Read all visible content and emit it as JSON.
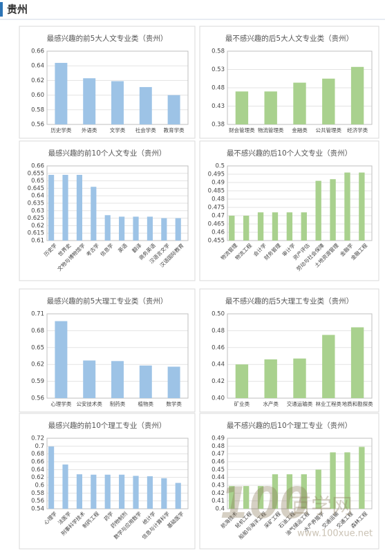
{
  "header": "贵州",
  "watermark": {
    "logo": "100",
    "name": "百学网",
    "url": "www.100xue.net"
  },
  "chart_data": [
    {
      "type": "bar",
      "title": "最感兴趣的前5大人文专业类（贵州）",
      "categories": [
        "历史学类",
        "外语类",
        "文学类",
        "社会学类",
        "教育学类"
      ],
      "values": [
        0.644,
        0.623,
        0.619,
        0.611,
        0.6
      ],
      "color": "#9dc3e6",
      "ylim": [
        0.56,
        0.66
      ],
      "yticks": [
        0.56,
        0.58,
        {
          "value": 0.6,
          "label": "0.60"
        },
        0.62,
        0.64,
        0.66
      ],
      "grid": true
    },
    {
      "type": "bar",
      "title": "最不感兴趣的后5大人文专业类（贵州）",
      "categories": [
        "财会管理类",
        "物流管理类",
        "金融类",
        "公共管理类",
        "经济学类"
      ],
      "values": [
        0.47,
        0.47,
        0.494,
        0.505,
        0.537
      ],
      "color": "#a9d18e",
      "ylim": [
        0.38,
        0.58
      ],
      "yticks": [
        0.38,
        0.43,
        0.48,
        0.53,
        0.58
      ],
      "grid": true
    },
    {
      "type": "bar",
      "title": "最感兴趣的前10个人文专业（贵州）",
      "categories": [
        "历史学",
        "世界史",
        "文物与博物馆学",
        "考古学",
        "信息学",
        "英语",
        "翻译",
        "商务英语",
        "汉语言文学",
        "汉语国际教育"
      ],
      "values": [
        0.654,
        0.654,
        0.654,
        0.646,
        0.627,
        0.626,
        0.626,
        0.626,
        0.625,
        0.625
      ],
      "color": "#9dc3e6",
      "ylim": [
        0.61,
        0.66
      ],
      "yticks": [
        0.61,
        0.615,
        0.62,
        0.625,
        0.63,
        0.635,
        0.64,
        0.645,
        0.65,
        0.655,
        0.66
      ],
      "grid": true
    },
    {
      "type": "bar",
      "title": "最不感兴趣的后10个人文专业（贵州）",
      "categories": [
        "物流管理",
        "物流工程",
        "会计学",
        "财务管理",
        "审计学",
        "资产评估",
        "劳动与社会保障",
        "土地资源管理",
        "金融学",
        "金融工程"
      ],
      "values": [
        0.47,
        0.47,
        0.472,
        0.472,
        0.472,
        0.472,
        0.491,
        0.492,
        0.496,
        0.496
      ],
      "color": "#a9d18e",
      "ylim": [
        0.455,
        0.5
      ],
      "yticks": [
        0.455,
        0.46,
        0.465,
        0.47,
        0.475,
        0.48,
        0.485,
        0.49,
        0.495,
        0.5
      ],
      "grid": true
    },
    {
      "type": "bar",
      "title": "最感兴趣的前5大理工专业类（贵州）",
      "categories": [
        "心理学类",
        "公安技术类",
        "制药类",
        "植物类",
        "数学类"
      ],
      "values": [
        0.697,
        0.627,
        0.626,
        0.618,
        0.616
      ],
      "color": "#9dc3e6",
      "ylim": [
        0.56,
        0.71
      ],
      "yticks": [
        0.56,
        0.59,
        0.62,
        0.65,
        0.68,
        0.71
      ],
      "grid": true
    },
    {
      "type": "bar",
      "title": "最不感兴趣的后5大理工专业类（贵州）",
      "categories": [
        "矿业类",
        "水产类",
        "交通运输类",
        "林业工程类",
        "地质和勘探类"
      ],
      "values": [
        0.44,
        0.446,
        0.447,
        0.475,
        0.484
      ],
      "color": "#a9d18e",
      "ylim": [
        0.4,
        0.5
      ],
      "yticks": [
        {
          "value": 0.4,
          "label": "0.40"
        },
        0.42,
        0.44,
        0.46,
        0.48,
        {
          "value": 0.5,
          "label": "0.50"
        }
      ],
      "grid": true
    },
    {
      "type": "bar",
      "title": "最感兴趣的前10个理工专业（贵州）",
      "categories": [
        "心理学",
        "法医学",
        "刑事科学技术",
        "制药工程",
        "药学",
        "药物制剂",
        "数学与应用数学",
        "统计学",
        "信息与计算科学",
        "基础医学"
      ],
      "values": [
        0.699,
        0.653,
        0.628,
        0.627,
        0.627,
        0.627,
        0.624,
        0.623,
        0.618,
        0.606
      ],
      "color": "#9dc3e6",
      "ylim": [
        0.54,
        0.72
      ],
      "yticks": [
        0.54,
        0.56,
        0.58,
        0.6,
        0.62,
        0.64,
        0.66,
        0.68,
        0.7,
        0.72
      ],
      "grid": true
    },
    {
      "type": "bar",
      "title": "最不感兴趣的后10个理工专业（贵州）",
      "categories": [
        "航海技术",
        "轮机工程",
        "船舶与海洋工程",
        "采矿工程",
        "石油工程",
        "油气储运工程",
        "水产养殖学",
        "交通运输",
        "交通工程",
        "森林工程"
      ],
      "values": [
        0.429,
        0.429,
        0.429,
        0.444,
        0.444,
        0.444,
        0.45,
        0.472,
        0.472,
        0.479
      ],
      "color": "#a9d18e",
      "ylim": [
        0.4,
        0.49
      ],
      "yticks": [
        0.4,
        0.41,
        0.42,
        0.43,
        0.44,
        0.45,
        0.46,
        0.47,
        0.48,
        0.49
      ],
      "grid": true
    }
  ]
}
